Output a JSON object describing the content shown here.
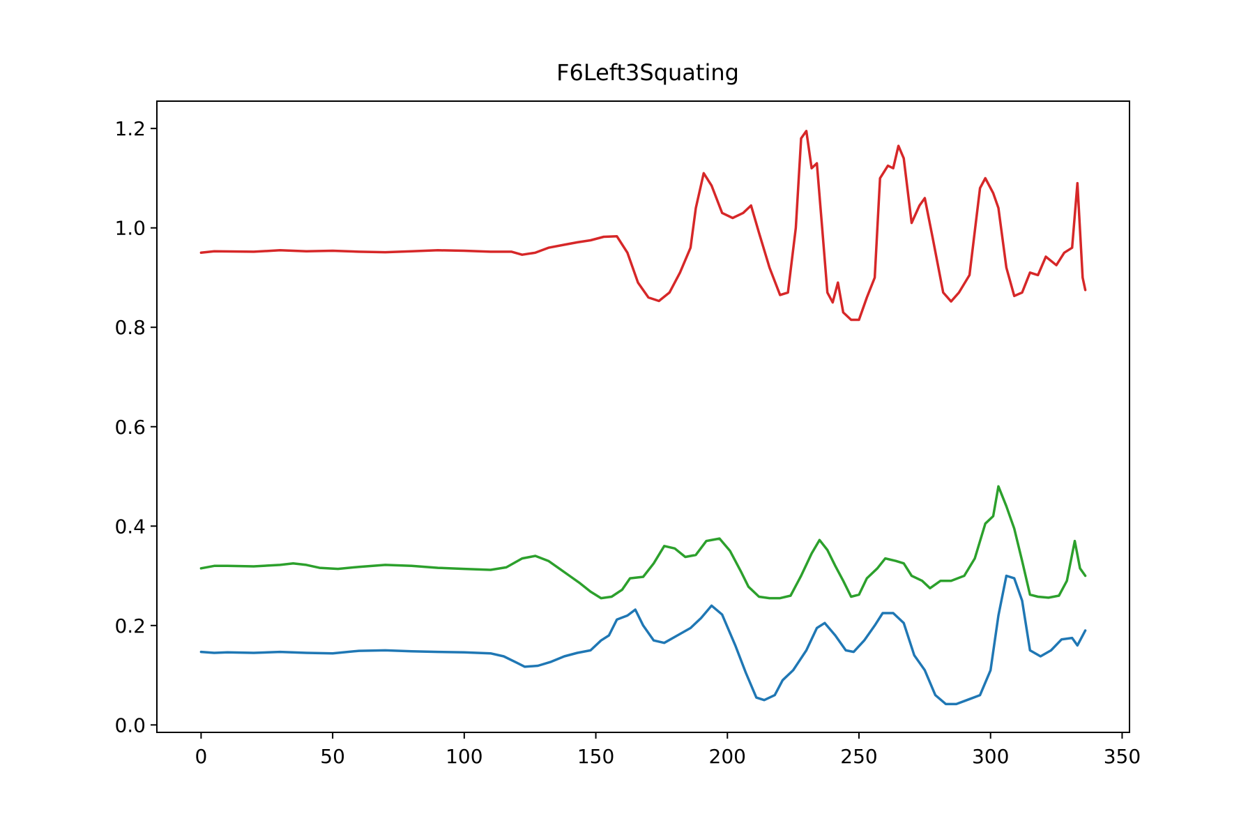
{
  "chart_data": {
    "type": "line",
    "title": "F6Left3Squating",
    "xlabel": "",
    "ylabel": "",
    "xlim": [
      -16.8,
      352.8
    ],
    "ylim": [
      -0.015,
      1.255
    ],
    "xticks": [
      0,
      50,
      100,
      150,
      200,
      250,
      300,
      350
    ],
    "yticks": [
      0.0,
      0.2,
      0.4,
      0.6,
      0.8,
      1.0,
      1.2
    ],
    "xtick_labels": [
      "0",
      "50",
      "100",
      "150",
      "200",
      "250",
      "300",
      "350"
    ],
    "ytick_labels": [
      "0.0",
      "0.2",
      "0.4",
      "0.6",
      "0.8",
      "1.0",
      "1.2"
    ],
    "grid": false,
    "legend": "none",
    "series": [
      {
        "color": "#1f77b4",
        "points": [
          [
            0,
            0.147
          ],
          [
            5,
            0.145
          ],
          [
            10,
            0.146
          ],
          [
            20,
            0.145
          ],
          [
            30,
            0.147
          ],
          [
            40,
            0.145
          ],
          [
            50,
            0.144
          ],
          [
            60,
            0.149
          ],
          [
            70,
            0.15
          ],
          [
            80,
            0.148
          ],
          [
            90,
            0.147
          ],
          [
            100,
            0.146
          ],
          [
            110,
            0.144
          ],
          [
            115,
            0.138
          ],
          [
            120,
            0.125
          ],
          [
            123,
            0.117
          ],
          [
            128,
            0.119
          ],
          [
            133,
            0.127
          ],
          [
            138,
            0.138
          ],
          [
            143,
            0.145
          ],
          [
            148,
            0.15
          ],
          [
            152,
            0.17
          ],
          [
            155,
            0.18
          ],
          [
            158,
            0.212
          ],
          [
            162,
            0.22
          ],
          [
            165,
            0.232
          ],
          [
            168,
            0.2
          ],
          [
            172,
            0.17
          ],
          [
            176,
            0.165
          ],
          [
            181,
            0.18
          ],
          [
            186,
            0.195
          ],
          [
            190,
            0.215
          ],
          [
            194,
            0.24
          ],
          [
            198,
            0.222
          ],
          [
            203,
            0.16
          ],
          [
            207,
            0.105
          ],
          [
            211,
            0.055
          ],
          [
            214,
            0.05
          ],
          [
            218,
            0.06
          ],
          [
            221,
            0.09
          ],
          [
            225,
            0.11
          ],
          [
            230,
            0.15
          ],
          [
            234,
            0.195
          ],
          [
            237,
            0.205
          ],
          [
            241,
            0.18
          ],
          [
            245,
            0.15
          ],
          [
            248,
            0.147
          ],
          [
            252,
            0.17
          ],
          [
            256,
            0.2
          ],
          [
            259,
            0.225
          ],
          [
            263,
            0.225
          ],
          [
            267,
            0.205
          ],
          [
            271,
            0.14
          ],
          [
            275,
            0.11
          ],
          [
            279,
            0.06
          ],
          [
            283,
            0.042
          ],
          [
            287,
            0.042
          ],
          [
            292,
            0.052
          ],
          [
            296,
            0.06
          ],
          [
            300,
            0.11
          ],
          [
            303,
            0.22
          ],
          [
            306,
            0.3
          ],
          [
            309,
            0.295
          ],
          [
            312,
            0.25
          ],
          [
            315,
            0.15
          ],
          [
            319,
            0.138
          ],
          [
            323,
            0.15
          ],
          [
            327,
            0.172
          ],
          [
            331,
            0.175
          ],
          [
            333,
            0.16
          ],
          [
            336,
            0.19
          ]
        ]
      },
      {
        "color": "#2ca02c",
        "points": [
          [
            0,
            0.315
          ],
          [
            5,
            0.32
          ],
          [
            10,
            0.32
          ],
          [
            20,
            0.319
          ],
          [
            30,
            0.322
          ],
          [
            35,
            0.325
          ],
          [
            40,
            0.322
          ],
          [
            45,
            0.316
          ],
          [
            52,
            0.314
          ],
          [
            60,
            0.318
          ],
          [
            70,
            0.322
          ],
          [
            80,
            0.32
          ],
          [
            90,
            0.316
          ],
          [
            100,
            0.314
          ],
          [
            110,
            0.312
          ],
          [
            116,
            0.317
          ],
          [
            122,
            0.335
          ],
          [
            127,
            0.34
          ],
          [
            132,
            0.33
          ],
          [
            136,
            0.315
          ],
          [
            140,
            0.3
          ],
          [
            144,
            0.285
          ],
          [
            148,
            0.268
          ],
          [
            152,
            0.255
          ],
          [
            156,
            0.258
          ],
          [
            160,
            0.272
          ],
          [
            163,
            0.295
          ],
          [
            168,
            0.298
          ],
          [
            172,
            0.325
          ],
          [
            176,
            0.36
          ],
          [
            180,
            0.355
          ],
          [
            184,
            0.338
          ],
          [
            188,
            0.342
          ],
          [
            192,
            0.37
          ],
          [
            197,
            0.375
          ],
          [
            201,
            0.35
          ],
          [
            205,
            0.31
          ],
          [
            208,
            0.278
          ],
          [
            212,
            0.258
          ],
          [
            216,
            0.255
          ],
          [
            220,
            0.255
          ],
          [
            224,
            0.26
          ],
          [
            228,
            0.3
          ],
          [
            232,
            0.345
          ],
          [
            235,
            0.372
          ],
          [
            238,
            0.352
          ],
          [
            241,
            0.32
          ],
          [
            244,
            0.29
          ],
          [
            247,
            0.258
          ],
          [
            250,
            0.262
          ],
          [
            253,
            0.295
          ],
          [
            257,
            0.315
          ],
          [
            260,
            0.335
          ],
          [
            264,
            0.33
          ],
          [
            267,
            0.325
          ],
          [
            270,
            0.3
          ],
          [
            274,
            0.29
          ],
          [
            277,
            0.275
          ],
          [
            281,
            0.29
          ],
          [
            285,
            0.29
          ],
          [
            290,
            0.3
          ],
          [
            294,
            0.335
          ],
          [
            298,
            0.405
          ],
          [
            301,
            0.42
          ],
          [
            303,
            0.48
          ],
          [
            306,
            0.44
          ],
          [
            309,
            0.395
          ],
          [
            312,
            0.33
          ],
          [
            315,
            0.262
          ],
          [
            318,
            0.258
          ],
          [
            322,
            0.256
          ],
          [
            326,
            0.26
          ],
          [
            329,
            0.29
          ],
          [
            332,
            0.37
          ],
          [
            334,
            0.315
          ],
          [
            336,
            0.3
          ]
        ]
      },
      {
        "color": "#d62728",
        "points": [
          [
            0,
            0.95
          ],
          [
            5,
            0.953
          ],
          [
            20,
            0.952
          ],
          [
            30,
            0.955
          ],
          [
            40,
            0.953
          ],
          [
            50,
            0.954
          ],
          [
            60,
            0.952
          ],
          [
            70,
            0.951
          ],
          [
            80,
            0.953
          ],
          [
            90,
            0.955
          ],
          [
            100,
            0.954
          ],
          [
            110,
            0.952
          ],
          [
            118,
            0.952
          ],
          [
            122,
            0.946
          ],
          [
            127,
            0.95
          ],
          [
            132,
            0.96
          ],
          [
            138,
            0.966
          ],
          [
            143,
            0.971
          ],
          [
            148,
            0.975
          ],
          [
            153,
            0.982
          ],
          [
            158,
            0.983
          ],
          [
            162,
            0.95
          ],
          [
            166,
            0.89
          ],
          [
            170,
            0.86
          ],
          [
            174,
            0.853
          ],
          [
            178,
            0.87
          ],
          [
            182,
            0.91
          ],
          [
            186,
            0.96
          ],
          [
            188,
            1.04
          ],
          [
            191,
            1.11
          ],
          [
            194,
            1.085
          ],
          [
            198,
            1.03
          ],
          [
            202,
            1.02
          ],
          [
            206,
            1.03
          ],
          [
            209,
            1.045
          ],
          [
            212,
            0.99
          ],
          [
            216,
            0.92
          ],
          [
            220,
            0.865
          ],
          [
            223,
            0.87
          ],
          [
            226,
            1.0
          ],
          [
            228,
            1.18
          ],
          [
            230,
            1.195
          ],
          [
            232,
            1.12
          ],
          [
            234,
            1.13
          ],
          [
            236,
            1.0
          ],
          [
            238,
            0.87
          ],
          [
            240,
            0.85
          ],
          [
            242,
            0.89
          ],
          [
            244,
            0.83
          ],
          [
            247,
            0.815
          ],
          [
            250,
            0.815
          ],
          [
            253,
            0.86
          ],
          [
            256,
            0.9
          ],
          [
            258,
            1.1
          ],
          [
            261,
            1.125
          ],
          [
            263,
            1.12
          ],
          [
            265,
            1.165
          ],
          [
            267,
            1.14
          ],
          [
            270,
            1.01
          ],
          [
            273,
            1.045
          ],
          [
            275,
            1.06
          ],
          [
            278,
            0.98
          ],
          [
            282,
            0.87
          ],
          [
            285,
            0.852
          ],
          [
            288,
            0.87
          ],
          [
            292,
            0.905
          ],
          [
            296,
            1.08
          ],
          [
            298,
            1.1
          ],
          [
            301,
            1.07
          ],
          [
            303,
            1.04
          ],
          [
            306,
            0.92
          ],
          [
            309,
            0.863
          ],
          [
            312,
            0.87
          ],
          [
            315,
            0.91
          ],
          [
            318,
            0.905
          ],
          [
            321,
            0.942
          ],
          [
            325,
            0.925
          ],
          [
            328,
            0.95
          ],
          [
            331,
            0.96
          ],
          [
            333,
            1.09
          ],
          [
            335,
            0.9
          ],
          [
            336,
            0.875
          ]
        ]
      }
    ]
  }
}
